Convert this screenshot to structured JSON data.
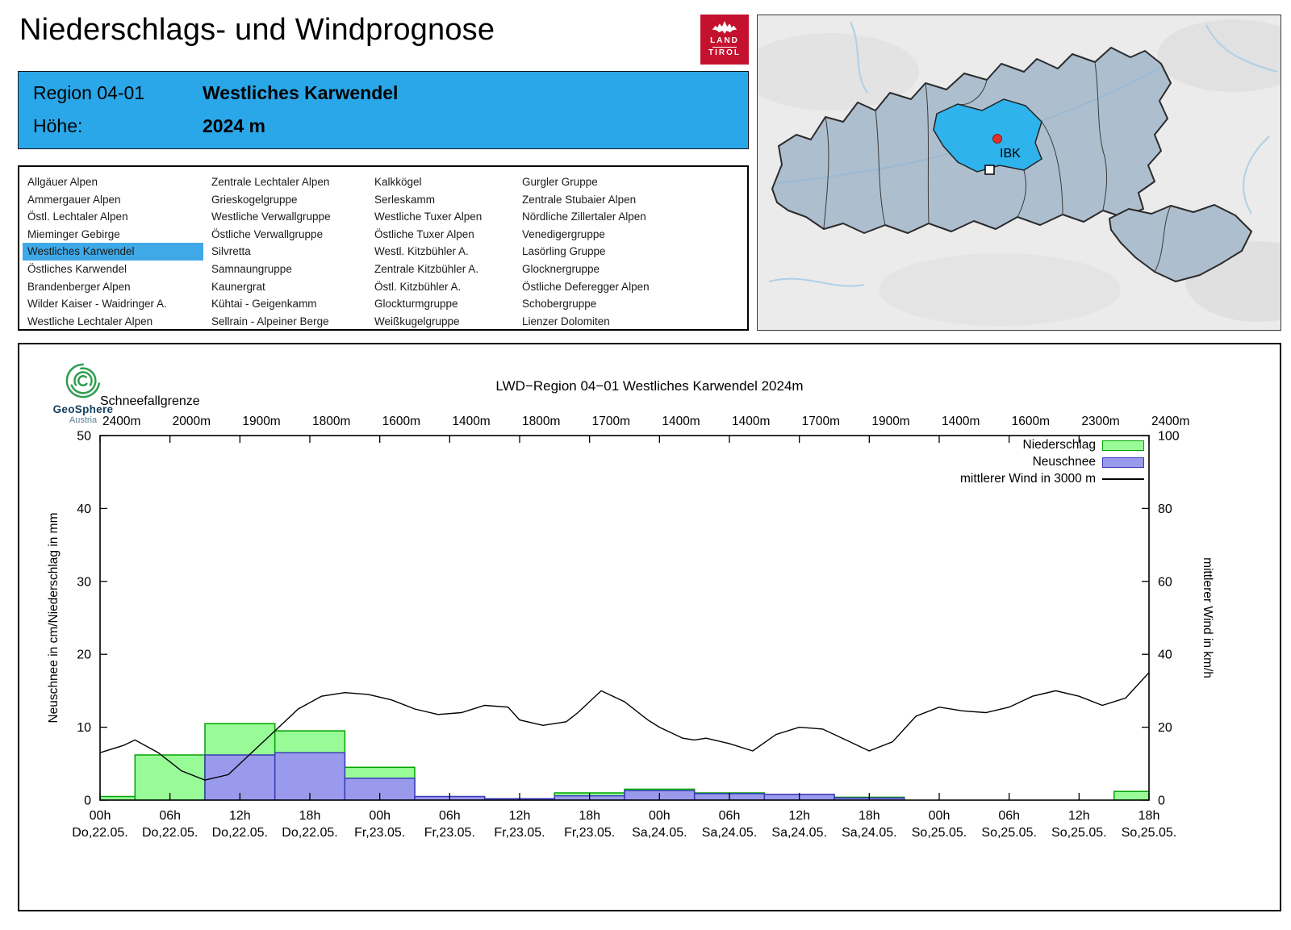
{
  "header": {
    "title": "Niederschlags- und Windprognose",
    "logo": {
      "line1": "LAND",
      "line2": "TIROL"
    }
  },
  "region_box": {
    "region_label": "Region 04-01",
    "region_name": "Westliches Karwendel",
    "altitude_label": "Höhe:",
    "altitude_value": "2024 m"
  },
  "region_list": {
    "selected": "Westliches Karwendel",
    "columns": [
      [
        "Allgäuer Alpen",
        "Ammergauer Alpen",
        "Östl. Lechtaler Alpen",
        "Mieminger Gebirge",
        "Westliches Karwendel",
        "Östliches Karwendel",
        "Brandenberger Alpen",
        "Wilder Kaiser - Waidringer A.",
        "Westliche Lechtaler Alpen"
      ],
      [
        "Zentrale Lechtaler Alpen",
        "Grieskogelgruppe",
        "Westliche Verwallgruppe",
        "Östliche Verwallgruppe",
        "Silvretta",
        "Samnaungruppe",
        "Kaunergrat",
        "Kühtai - Geigenkamm",
        "Sellrain - Alpeiner Berge"
      ],
      [
        "Kalkkögel",
        "Serleskamm",
        "Westliche Tuxer Alpen",
        "Östliche Tuxer Alpen",
        "Westl. Kitzbühler A.",
        "Zentrale Kitzbühler A.",
        "Östl. Kitzbühler A.",
        "Glockturmgruppe",
        "Weißkugelgruppe"
      ],
      [
        "Gurgler Gruppe",
        "Zentrale Stubaier Alpen",
        "Nördliche Zillertaler Alpen",
        "Venedigergruppe",
        "Lasörling Gruppe",
        "Glocknergruppe",
        "Östliche Deferegger Alpen",
        "Schobergruppe",
        "Lienzer Dolomiten"
      ]
    ]
  },
  "map": {
    "marker_label": "IBK",
    "highlight_color": "#2fb3ed"
  },
  "chart_data": {
    "type": "bar",
    "title": "LWD−Region 04−01 Westliches Karwendel 2024m",
    "logo": {
      "name": "GeoSphere",
      "sub": "Austria"
    },
    "snowline": {
      "label": "Schneefallgrenze",
      "values": [
        "2400m",
        "2000m",
        "1900m",
        "1800m",
        "1600m",
        "1400m",
        "1800m",
        "1700m",
        "1400m",
        "1400m",
        "1700m",
        "1900m",
        "1400m",
        "1600m",
        "2300m",
        "2400m"
      ]
    },
    "x_ticks": [
      {
        "time": "00h",
        "date": "Do,22.05."
      },
      {
        "time": "06h",
        "date": "Do,22.05."
      },
      {
        "time": "12h",
        "date": "Do,22.05."
      },
      {
        "time": "18h",
        "date": "Do,22.05."
      },
      {
        "time": "00h",
        "date": "Fr,23.05."
      },
      {
        "time": "06h",
        "date": "Fr,23.05."
      },
      {
        "time": "12h",
        "date": "Fr,23.05."
      },
      {
        "time": "18h",
        "date": "Fr,23.05."
      },
      {
        "time": "00h",
        "date": "Sa,24.05."
      },
      {
        "time": "06h",
        "date": "Sa,24.05."
      },
      {
        "time": "12h",
        "date": "Sa,24.05."
      },
      {
        "time": "18h",
        "date": "Sa,24.05."
      },
      {
        "time": "00h",
        "date": "So,25.05."
      },
      {
        "time": "06h",
        "date": "So,25.05."
      },
      {
        "time": "12h",
        "date": "So,25.05."
      },
      {
        "time": "18h",
        "date": "So,25.05."
      }
    ],
    "left_axis": {
      "label": "Neuschnee in cm/Niederschlag in mm",
      "min": 0,
      "max": 50,
      "step": 10
    },
    "right_axis": {
      "label": "mittlerer Wind in km/h",
      "min": 0,
      "max": 100,
      "step": 20
    },
    "legend": [
      {
        "label": "Niederschlag",
        "fill": "#98fb98",
        "stroke": "#00a400"
      },
      {
        "label": "Neuschnee",
        "fill": "#9a9aec",
        "stroke": "#3939b8"
      },
      {
        "label": "mittlerer Wind in 3000 m",
        "stroke": "#000000"
      }
    ],
    "series": {
      "centers_hours": [
        0,
        6,
        12,
        18,
        24,
        30,
        36,
        42,
        48,
        54,
        60,
        66,
        72,
        78,
        84,
        90
      ],
      "niederschlag_mm": [
        0.5,
        6.2,
        10.5,
        9.5,
        4.5,
        0,
        0,
        1.0,
        1.5,
        1.0,
        0.7,
        0.4,
        0,
        0,
        0,
        1.2
      ],
      "neuschnee_cm": [
        0,
        0,
        6.2,
        6.5,
        3.0,
        0.5,
        0.2,
        0.6,
        1.3,
        0.9,
        0.8,
        0.3,
        0,
        0,
        0,
        0
      ],
      "wind_kmh": [
        [
          0,
          13
        ],
        [
          2,
          15
        ],
        [
          3,
          16.5
        ],
        [
          5,
          13
        ],
        [
          7,
          8
        ],
        [
          9,
          5.5
        ],
        [
          11,
          7
        ],
        [
          13,
          13
        ],
        [
          15,
          19
        ],
        [
          17,
          25
        ],
        [
          19,
          28.5
        ],
        [
          21,
          29.5
        ],
        [
          23,
          29
        ],
        [
          25,
          27.5
        ],
        [
          27,
          25
        ],
        [
          29,
          23.5
        ],
        [
          31,
          24
        ],
        [
          33,
          26
        ],
        [
          35,
          25.5
        ],
        [
          36,
          22
        ],
        [
          38,
          20.5
        ],
        [
          40,
          21.5
        ],
        [
          41,
          24
        ],
        [
          43,
          30
        ],
        [
          45,
          27
        ],
        [
          47,
          22
        ],
        [
          48,
          20
        ],
        [
          50,
          17
        ],
        [
          51,
          16.5
        ],
        [
          52,
          17
        ],
        [
          54,
          15.5
        ],
        [
          56,
          13.5
        ],
        [
          58,
          18
        ],
        [
          60,
          20
        ],
        [
          62,
          19.5
        ],
        [
          64,
          16.5
        ],
        [
          66,
          13.5
        ],
        [
          68,
          16
        ],
        [
          70,
          23
        ],
        [
          72,
          25.5
        ],
        [
          74,
          24.5
        ],
        [
          76,
          24
        ],
        [
          78,
          25.5
        ],
        [
          80,
          28.5
        ],
        [
          82,
          30
        ],
        [
          84,
          28.5
        ],
        [
          86,
          26
        ],
        [
          88,
          28
        ],
        [
          90,
          35
        ]
      ]
    }
  }
}
